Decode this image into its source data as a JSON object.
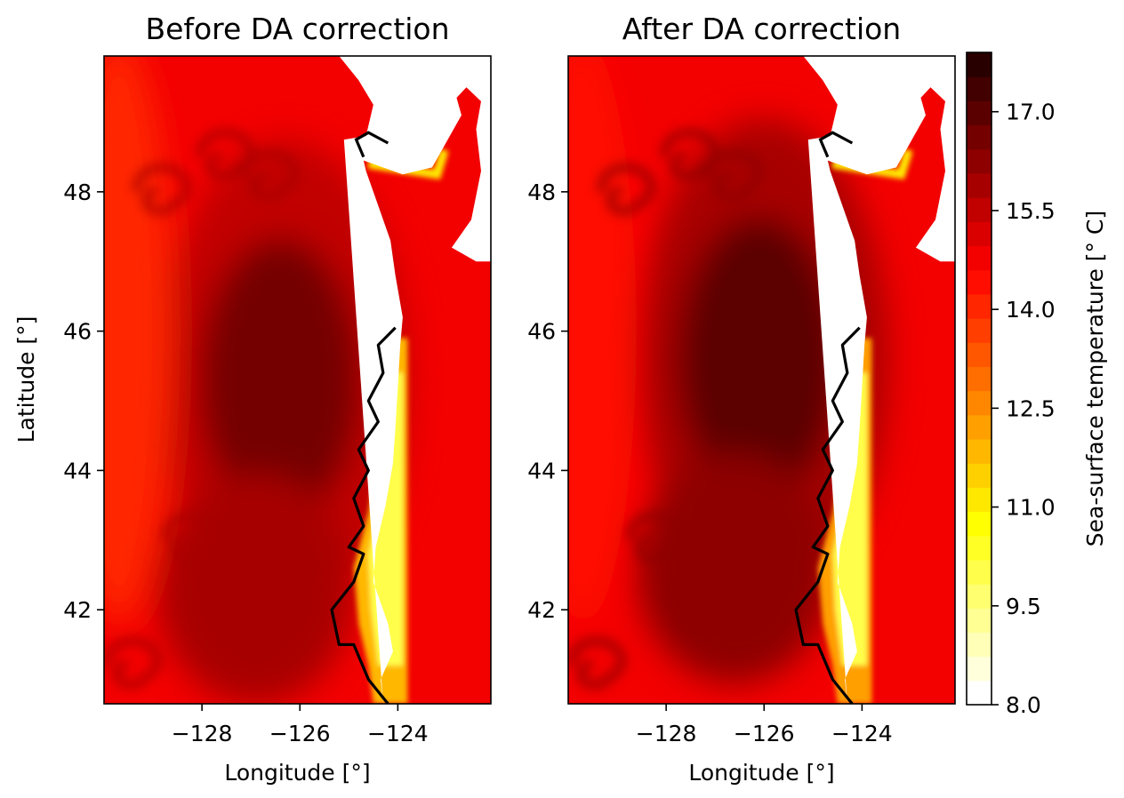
{
  "chart_data": [
    {
      "type": "heatmap",
      "title": "Before DA correction",
      "xlabel": "Longitude [°]",
      "ylabel": "Latitude [°]",
      "xlim": [
        -130.0,
        -122.1
      ],
      "ylim": [
        40.65,
        49.95
      ],
      "x_ticks": [
        -128,
        -126,
        -124
      ],
      "x_tick_labels": [
        "−128",
        "−126",
        "−124"
      ],
      "y_ticks": [
        42,
        44,
        46,
        48
      ],
      "y_tick_labels": [
        "42",
        "44",
        "46",
        "48"
      ],
      "offshore_temperature": 14.6,
      "warm_core": {
        "lon": -126.3,
        "lat": 45.3,
        "value": 16.6
      },
      "coastal_upwelling_min": 10.0,
      "contour_line": "black",
      "grid": false
    },
    {
      "type": "heatmap",
      "title": "After DA correction",
      "xlabel": "Longitude [°]",
      "ylabel": "",
      "xlim": [
        -130.0,
        -122.1
      ],
      "ylim": [
        40.65,
        49.95
      ],
      "x_ticks": [
        -128,
        -126,
        -124
      ],
      "x_tick_labels": [
        "−128",
        "−126",
        "−124"
      ],
      "y_ticks": [
        42,
        44,
        46,
        48
      ],
      "y_tick_labels": [
        "42",
        "44",
        "46",
        "48"
      ],
      "offshore_temperature": 14.9,
      "warm_core": {
        "lon": -126.0,
        "lat": 45.6,
        "value": 16.9
      },
      "coastal_upwelling_min": 10.2,
      "contour_line": "black",
      "grid": false
    }
  ],
  "colorbar": {
    "label": "Sea-surface temperature [° C]",
    "min": 8.0,
    "max": 17.9,
    "levels": 27,
    "colormap": "hot_r",
    "ticks": [
      8.0,
      9.5,
      11.0,
      12.5,
      14.0,
      15.5,
      17.0
    ],
    "tick_labels": [
      "8.0",
      "9.5",
      "11.0",
      "12.5",
      "14.0",
      "15.5",
      "17.0"
    ]
  },
  "colors": {
    "land": "#ffffff",
    "coastline": "#000000"
  }
}
